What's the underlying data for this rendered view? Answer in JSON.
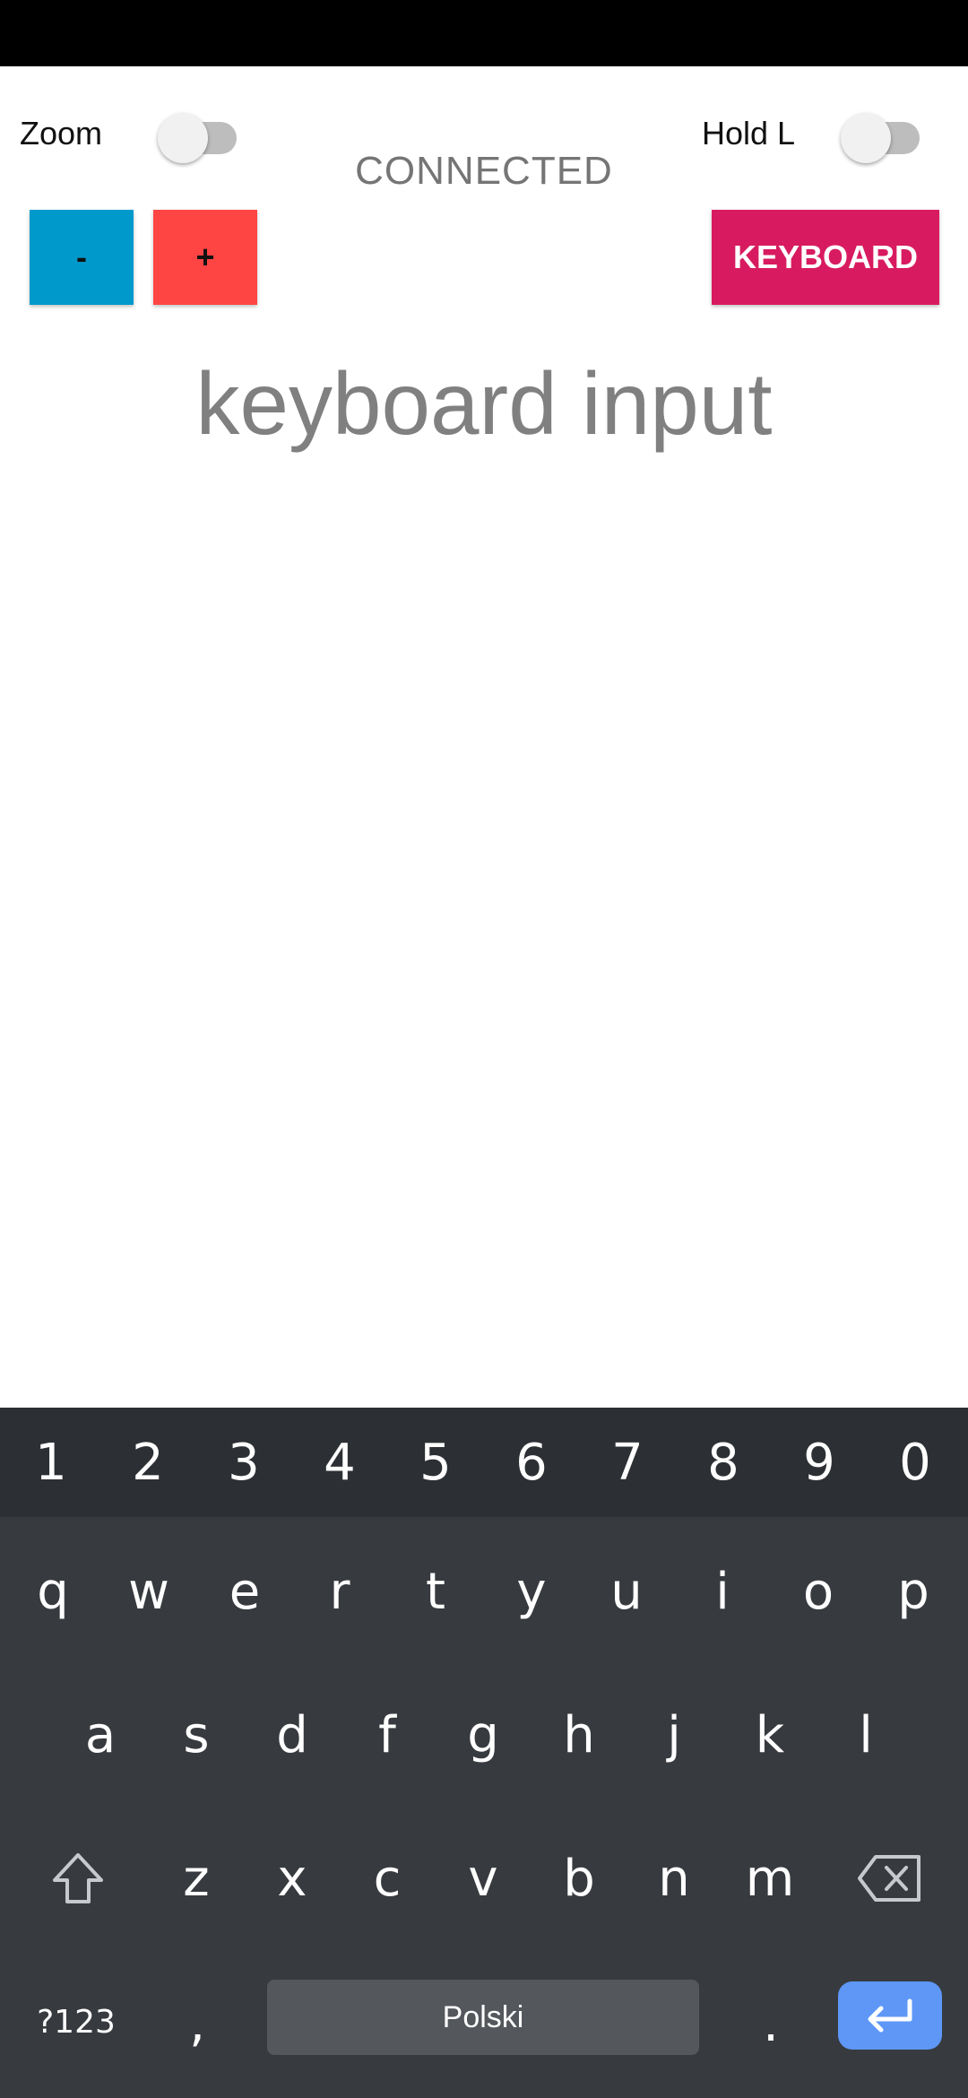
{
  "toggles": {
    "zoom_label": "Zoom",
    "hold_label": "Hold L"
  },
  "status": "CONNECTED",
  "buttons": {
    "minus": "-",
    "plus": "+",
    "keyboard": "KEYBOARD"
  },
  "input": {
    "placeholder": "keyboard input"
  },
  "keyboard": {
    "numbers": [
      "1",
      "2",
      "3",
      "4",
      "5",
      "6",
      "7",
      "8",
      "9",
      "0"
    ],
    "row1": [
      "q",
      "w",
      "e",
      "r",
      "t",
      "y",
      "u",
      "i",
      "o",
      "p"
    ],
    "row2": [
      "a",
      "s",
      "d",
      "f",
      "g",
      "h",
      "j",
      "k",
      "l"
    ],
    "row3": [
      "z",
      "x",
      "c",
      "v",
      "b",
      "n",
      "m"
    ],
    "symbols_label": "?123",
    "comma": ",",
    "space_label": "Polski",
    "period": ".",
    "shift_icon": "shift-icon",
    "backspace_icon": "backspace-icon",
    "enter_icon": "enter-icon"
  },
  "colors": {
    "minus_button": "#0099cc",
    "plus_button": "#ff4444",
    "keyboard_button": "#d81b60",
    "keyboard_bg": "#373a3f",
    "enter_key": "#5e97f6"
  }
}
